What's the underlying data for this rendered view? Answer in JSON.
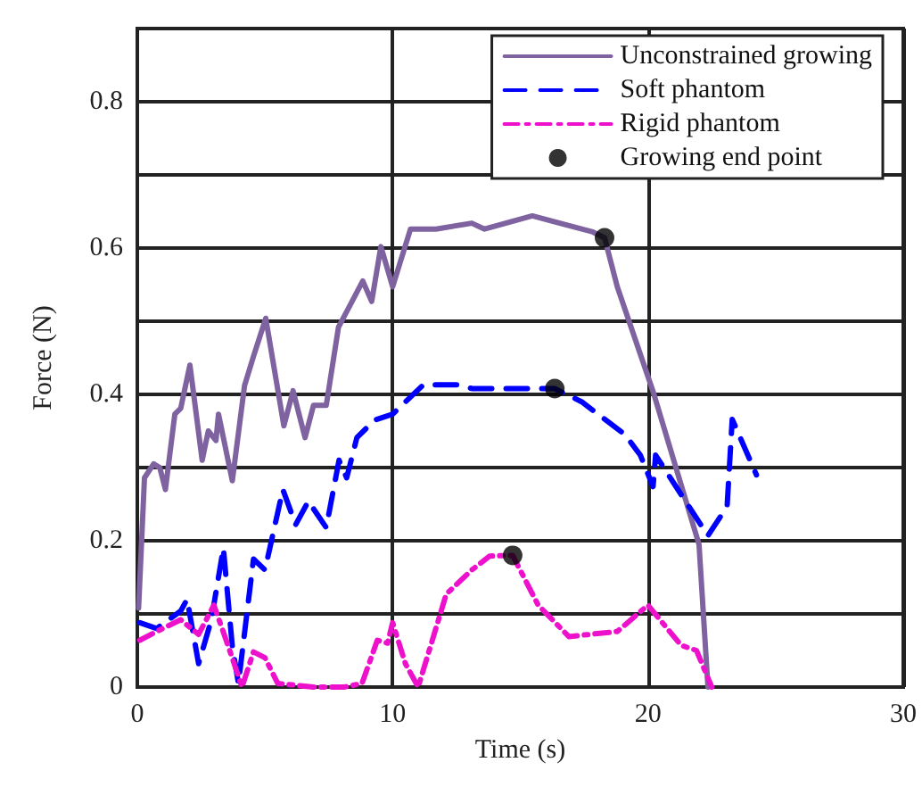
{
  "chart_data": {
    "type": "line",
    "xlabel": "Time (s)",
    "ylabel": "Force (N)",
    "xlim": [
      0,
      30
    ],
    "xticks": [
      0,
      10,
      20,
      30
    ],
    "ylim": [
      0,
      0.9
    ],
    "yticks": [
      0,
      {
        "value": 0.1,
        "label": null
      },
      0.2,
      {
        "value": 0.3,
        "label": null
      },
      0.4,
      {
        "value": 0.5,
        "label": null
      },
      0.6,
      {
        "value": 0.7,
        "label": null
      },
      0.8
    ],
    "grid": true,
    "legend": "top right",
    "marker": "none",
    "series": [
      {
        "name": "Unconstrained growing",
        "color": "#7f63a0",
        "line_style": "solid",
        "x": [
          0.05,
          0.28,
          0.64,
          0.88,
          1.1,
          1.47,
          1.7,
          2.06,
          2.54,
          2.78,
          3.08,
          3.18,
          3.72,
          4.2,
          4.55,
          5.03,
          5.74,
          6.1,
          6.57,
          6.9,
          7.4,
          7.88,
          8.35,
          8.83,
          9.18,
          9.54,
          10.0,
          10.7,
          11.7,
          13.1,
          13.6,
          15.47,
          17.84,
          18.3,
          18.8,
          20.2,
          22.0,
          22.35
        ],
        "values": [
          0.108,
          0.286,
          0.305,
          0.3,
          0.27,
          0.373,
          0.381,
          0.44,
          0.31,
          0.35,
          0.337,
          0.373,
          0.282,
          0.412,
          0.452,
          0.504,
          0.357,
          0.405,
          0.341,
          0.385,
          0.385,
          0.492,
          0.523,
          0.555,
          0.527,
          0.602,
          0.547,
          0.626,
          0.626,
          0.634,
          0.626,
          0.644,
          0.622,
          0.614,
          0.547,
          0.404,
          0.195,
          0.0
        ]
      },
      {
        "name": "Soft phantom",
        "color": "#0000ff",
        "line_style": "dashed",
        "x": [
          0.1,
          0.76,
          1.7,
          1.95,
          2.4,
          2.9,
          3.37,
          3.72,
          3.96,
          4.55,
          5.0,
          5.7,
          6.2,
          6.7,
          7.4,
          7.9,
          8.2,
          8.6,
          9.3,
          10.0,
          11.2,
          12.6,
          13.1,
          15.2,
          16.35,
          17.4,
          19.1,
          19.7,
          20.2,
          20.3,
          21.6,
          22.35,
          23.1,
          23.3,
          24.25
        ],
        "values": [
          0.088,
          0.08,
          0.104,
          0.12,
          0.032,
          0.092,
          0.19,
          0.056,
          0.005,
          0.175,
          0.16,
          0.27,
          0.222,
          0.254,
          0.218,
          0.31,
          0.286,
          0.341,
          0.365,
          0.373,
          0.413,
          0.413,
          0.408,
          0.408,
          0.408,
          0.39,
          0.345,
          0.317,
          0.274,
          0.317,
          0.247,
          0.207,
          0.247,
          0.366,
          0.29
        ]
      },
      {
        "name": "Rigid phantom",
        "color": "#ee11cc",
        "line_style": "dashdot",
        "x": [
          0.1,
          0.76,
          1.7,
          2.4,
          3.0,
          3.6,
          4.1,
          4.55,
          5.0,
          5.5,
          6.9,
          8.1,
          8.8,
          9.4,
          9.8,
          10.0,
          10.5,
          11.0,
          12.1,
          13.1,
          13.8,
          14.7,
          15.7,
          16.9,
          18.8,
          20.0,
          21.3,
          21.9,
          22.5
        ],
        "values": [
          0.064,
          0.076,
          0.092,
          0.072,
          0.112,
          0.052,
          0.0,
          0.048,
          0.04,
          0.005,
          0.0,
          0.0,
          0.005,
          0.064,
          0.06,
          0.088,
          0.032,
          0.0,
          0.127,
          0.16,
          0.179,
          0.18,
          0.112,
          0.069,
          0.076,
          0.112,
          0.057,
          0.05,
          0.0
        ]
      },
      {
        "name": "Growing end point",
        "type": "scatter",
        "color": "#000000",
        "marker": "circle",
        "x": [
          18.3,
          16.35,
          14.7
        ],
        "values": [
          0.614,
          0.408,
          0.18
        ]
      }
    ]
  }
}
